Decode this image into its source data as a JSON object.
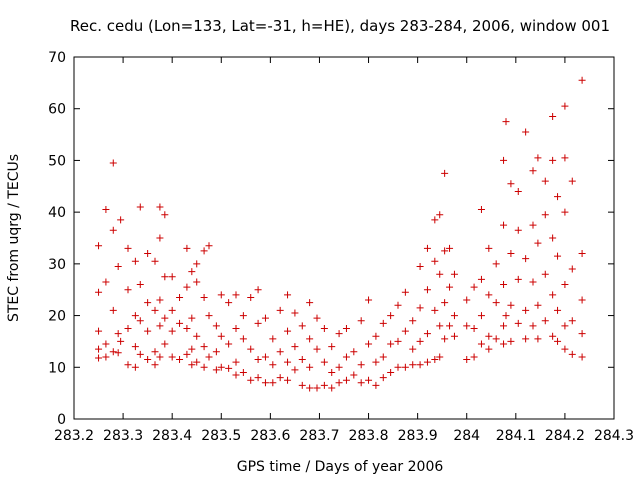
{
  "chart_data": {
    "type": "scatter",
    "title": "Rec. cedu (Lon=133, Lat=-31, h=HE), days 283-284, 2006, window 001",
    "xlabel": "GPS time / Days of year 2006",
    "ylabel": "STEC from uqrg / TECUs",
    "xlim": [
      283.2,
      284.3
    ],
    "ylim": [
      0,
      70
    ],
    "xticks": [
      "283.2",
      "283.3",
      "283.4",
      "283.5",
      "283.6",
      "283.7",
      "283.8",
      "283.9",
      "284",
      "284.1",
      "284.2",
      "284.3"
    ],
    "yticks": [
      "0",
      "10",
      "20",
      "30",
      "40",
      "50",
      "60",
      "70"
    ],
    "xtick_values": [
      283.2,
      283.3,
      283.4,
      283.5,
      283.6,
      283.7,
      283.8,
      283.9,
      284.0,
      284.1,
      284.2,
      284.3
    ],
    "ytick_values": [
      0,
      10,
      20,
      30,
      40,
      50,
      60,
      70
    ],
    "grid": false,
    "marker": "plus",
    "color": "#cc0000",
    "series": [
      {
        "name": "",
        "points": [
          [
            283.25,
            33.5
          ],
          [
            283.25,
            24.5
          ],
          [
            283.25,
            17.0
          ],
          [
            283.25,
            13.5
          ],
          [
            283.25,
            11.8
          ],
          [
            283.265,
            40.5
          ],
          [
            283.265,
            26.5
          ],
          [
            283.265,
            14.5
          ],
          [
            283.265,
            12.0
          ],
          [
            283.28,
            49.5
          ],
          [
            283.28,
            36.5
          ],
          [
            283.28,
            21.0
          ],
          [
            283.28,
            13.0
          ],
          [
            283.29,
            29.5
          ],
          [
            283.29,
            16.5
          ],
          [
            283.29,
            12.8
          ],
          [
            283.295,
            38.5
          ],
          [
            283.295,
            15.0
          ],
          [
            283.31,
            33.0
          ],
          [
            283.31,
            25.0
          ],
          [
            283.31,
            17.5
          ],
          [
            283.31,
            10.5
          ],
          [
            283.325,
            30.5
          ],
          [
            283.325,
            20.0
          ],
          [
            283.325,
            14.0
          ],
          [
            283.325,
            10.0
          ],
          [
            283.335,
            41.0
          ],
          [
            283.335,
            26.0
          ],
          [
            283.335,
            19.0
          ],
          [
            283.335,
            12.5
          ],
          [
            283.35,
            32.0
          ],
          [
            283.35,
            22.5
          ],
          [
            283.35,
            17.0
          ],
          [
            283.35,
            11.5
          ],
          [
            283.365,
            30.5
          ],
          [
            283.365,
            21.0
          ],
          [
            283.365,
            13.0
          ],
          [
            283.365,
            10.5
          ],
          [
            283.375,
            41.0
          ],
          [
            283.375,
            35.0
          ],
          [
            283.375,
            23.0
          ],
          [
            283.375,
            18.0
          ],
          [
            283.375,
            12.0
          ],
          [
            283.385,
            39.5
          ],
          [
            283.385,
            27.5
          ],
          [
            283.385,
            19.5
          ],
          [
            283.385,
            14.5
          ],
          [
            283.4,
            27.5
          ],
          [
            283.4,
            21.0
          ],
          [
            283.4,
            17.0
          ],
          [
            283.4,
            12.0
          ],
          [
            283.415,
            23.5
          ],
          [
            283.415,
            18.5
          ],
          [
            283.415,
            11.5
          ],
          [
            283.43,
            33.0
          ],
          [
            283.43,
            25.5
          ],
          [
            283.43,
            17.5
          ],
          [
            283.43,
            12.5
          ],
          [
            283.44,
            28.5
          ],
          [
            283.44,
            19.5
          ],
          [
            283.44,
            13.5
          ],
          [
            283.44,
            10.5
          ],
          [
            283.45,
            30.0
          ],
          [
            283.45,
            26.5
          ],
          [
            283.45,
            16.0
          ],
          [
            283.45,
            11.0
          ],
          [
            283.465,
            32.5
          ],
          [
            283.465,
            23.5
          ],
          [
            283.465,
            14.0
          ],
          [
            283.465,
            10.0
          ],
          [
            283.475,
            33.5
          ],
          [
            283.475,
            20.0
          ],
          [
            283.475,
            12.0
          ],
          [
            283.49,
            18.0
          ],
          [
            283.49,
            13.0
          ],
          [
            283.49,
            9.5
          ],
          [
            283.5,
            24.0
          ],
          [
            283.5,
            16.0
          ],
          [
            283.5,
            10.0
          ],
          [
            283.515,
            22.5
          ],
          [
            283.515,
            14.5
          ],
          [
            283.515,
            9.8
          ],
          [
            283.53,
            24.0
          ],
          [
            283.53,
            17.5
          ],
          [
            283.53,
            11.0
          ],
          [
            283.53,
            8.5
          ],
          [
            283.545,
            20.0
          ],
          [
            283.545,
            15.5
          ],
          [
            283.545,
            9.0
          ],
          [
            283.56,
            23.5
          ],
          [
            283.56,
            13.5
          ],
          [
            283.56,
            7.5
          ],
          [
            283.575,
            25.0
          ],
          [
            283.575,
            18.5
          ],
          [
            283.575,
            11.5
          ],
          [
            283.575,
            8.0
          ],
          [
            283.59,
            19.5
          ],
          [
            283.59,
            12.0
          ],
          [
            283.59,
            7.0
          ],
          [
            283.605,
            15.5
          ],
          [
            283.605,
            10.5
          ],
          [
            283.605,
            7.0
          ],
          [
            283.62,
            21.0
          ],
          [
            283.62,
            13.0
          ],
          [
            283.62,
            8.0
          ],
          [
            283.635,
            24.0
          ],
          [
            283.635,
            17.0
          ],
          [
            283.635,
            11.0
          ],
          [
            283.635,
            7.5
          ],
          [
            283.65,
            20.5
          ],
          [
            283.65,
            14.0
          ],
          [
            283.65,
            9.5
          ],
          [
            283.665,
            18.0
          ],
          [
            283.665,
            11.5
          ],
          [
            283.665,
            6.5
          ],
          [
            283.68,
            22.5
          ],
          [
            283.68,
            15.5
          ],
          [
            283.68,
            10.0
          ],
          [
            283.68,
            6.0
          ],
          [
            283.695,
            19.5
          ],
          [
            283.695,
            13.5
          ],
          [
            283.695,
            6.0
          ],
          [
            283.71,
            17.5
          ],
          [
            283.71,
            11.0
          ],
          [
            283.71,
            6.5
          ],
          [
            283.725,
            14.0
          ],
          [
            283.725,
            9.0
          ],
          [
            283.725,
            6.0
          ],
          [
            283.74,
            16.5
          ],
          [
            283.74,
            10.0
          ],
          [
            283.74,
            7.0
          ],
          [
            283.755,
            17.5
          ],
          [
            283.755,
            12.0
          ],
          [
            283.755,
            7.5
          ],
          [
            283.77,
            13.0
          ],
          [
            283.77,
            8.5
          ],
          [
            283.785,
            19.0
          ],
          [
            283.785,
            10.5
          ],
          [
            283.785,
            7.0
          ],
          [
            283.8,
            23.0
          ],
          [
            283.8,
            14.5
          ],
          [
            283.8,
            7.5
          ],
          [
            283.815,
            16.0
          ],
          [
            283.815,
            11.0
          ],
          [
            283.815,
            6.5
          ],
          [
            283.83,
            18.5
          ],
          [
            283.83,
            12.0
          ],
          [
            283.83,
            8.0
          ],
          [
            283.845,
            20.0
          ],
          [
            283.845,
            14.5
          ],
          [
            283.845,
            9.0
          ],
          [
            283.86,
            22.0
          ],
          [
            283.86,
            15.0
          ],
          [
            283.86,
            10.0
          ],
          [
            283.875,
            24.5
          ],
          [
            283.875,
            17.0
          ],
          [
            283.875,
            10.0
          ],
          [
            283.89,
            19.0
          ],
          [
            283.89,
            13.5
          ],
          [
            283.89,
            10.5
          ],
          [
            283.905,
            29.5
          ],
          [
            283.905,
            21.5
          ],
          [
            283.905,
            15.0
          ],
          [
            283.905,
            10.5
          ],
          [
            283.92,
            33.0
          ],
          [
            283.92,
            25.0
          ],
          [
            283.92,
            16.5
          ],
          [
            283.92,
            11.0
          ],
          [
            283.935,
            38.5
          ],
          [
            283.935,
            30.5
          ],
          [
            283.935,
            21.0
          ],
          [
            283.935,
            11.5
          ],
          [
            283.945,
            39.5
          ],
          [
            283.945,
            28.0
          ],
          [
            283.945,
            18.0
          ],
          [
            283.945,
            12.0
          ],
          [
            283.955,
            47.5
          ],
          [
            283.955,
            32.5
          ],
          [
            283.955,
            22.5
          ],
          [
            283.955,
            15.5
          ],
          [
            283.965,
            33.0
          ],
          [
            283.965,
            25.5
          ],
          [
            283.965,
            18.0
          ],
          [
            283.975,
            28.0
          ],
          [
            283.975,
            20.0
          ],
          [
            283.975,
            16.0
          ],
          [
            284.0,
            23.0
          ],
          [
            284.0,
            18.0
          ],
          [
            284.0,
            11.5
          ],
          [
            284.015,
            25.5
          ],
          [
            284.015,
            17.5
          ],
          [
            284.015,
            12.0
          ],
          [
            284.03,
            40.5
          ],
          [
            284.03,
            27.0
          ],
          [
            284.03,
            20.0
          ],
          [
            284.03,
            14.5
          ],
          [
            284.045,
            33.0
          ],
          [
            284.045,
            24.0
          ],
          [
            284.045,
            16.0
          ],
          [
            284.045,
            13.5
          ],
          [
            284.06,
            30.0
          ],
          [
            284.06,
            22.5
          ],
          [
            284.06,
            15.5
          ],
          [
            284.075,
            50.0
          ],
          [
            284.075,
            37.5
          ],
          [
            284.075,
            26.0
          ],
          [
            284.075,
            18.0
          ],
          [
            284.075,
            14.5
          ],
          [
            284.08,
            57.5
          ],
          [
            284.08,
            20.0
          ],
          [
            284.09,
            45.5
          ],
          [
            284.09,
            32.0
          ],
          [
            284.09,
            22.0
          ],
          [
            284.09,
            15.0
          ],
          [
            284.105,
            44.0
          ],
          [
            284.105,
            36.5
          ],
          [
            284.105,
            27.0
          ],
          [
            284.105,
            18.5
          ],
          [
            284.12,
            55.5
          ],
          [
            284.12,
            31.0
          ],
          [
            284.12,
            21.0
          ],
          [
            284.12,
            15.5
          ],
          [
            284.135,
            48.0
          ],
          [
            284.135,
            37.5
          ],
          [
            284.135,
            26.5
          ],
          [
            284.135,
            18.0
          ],
          [
            284.145,
            50.5
          ],
          [
            284.145,
            34.0
          ],
          [
            284.145,
            22.0
          ],
          [
            284.145,
            15.5
          ],
          [
            284.16,
            46.0
          ],
          [
            284.16,
            39.5
          ],
          [
            284.16,
            28.0
          ],
          [
            284.16,
            19.0
          ],
          [
            284.175,
            58.5
          ],
          [
            284.175,
            50.0
          ],
          [
            284.175,
            35.0
          ],
          [
            284.175,
            24.0
          ],
          [
            284.175,
            16.0
          ],
          [
            284.185,
            43.0
          ],
          [
            284.185,
            31.5
          ],
          [
            284.185,
            21.0
          ],
          [
            284.185,
            15.0
          ],
          [
            284.2,
            60.5
          ],
          [
            284.2,
            50.5
          ],
          [
            284.2,
            40.0
          ],
          [
            284.2,
            26.0
          ],
          [
            284.2,
            18.0
          ],
          [
            284.2,
            13.5
          ],
          [
            284.215,
            46.0
          ],
          [
            284.215,
            29.0
          ],
          [
            284.215,
            19.0
          ],
          [
            284.215,
            12.5
          ],
          [
            284.235,
            65.5
          ],
          [
            284.235,
            32.0
          ],
          [
            284.235,
            23.0
          ],
          [
            284.235,
            16.5
          ],
          [
            284.235,
            12.0
          ]
        ]
      }
    ]
  }
}
